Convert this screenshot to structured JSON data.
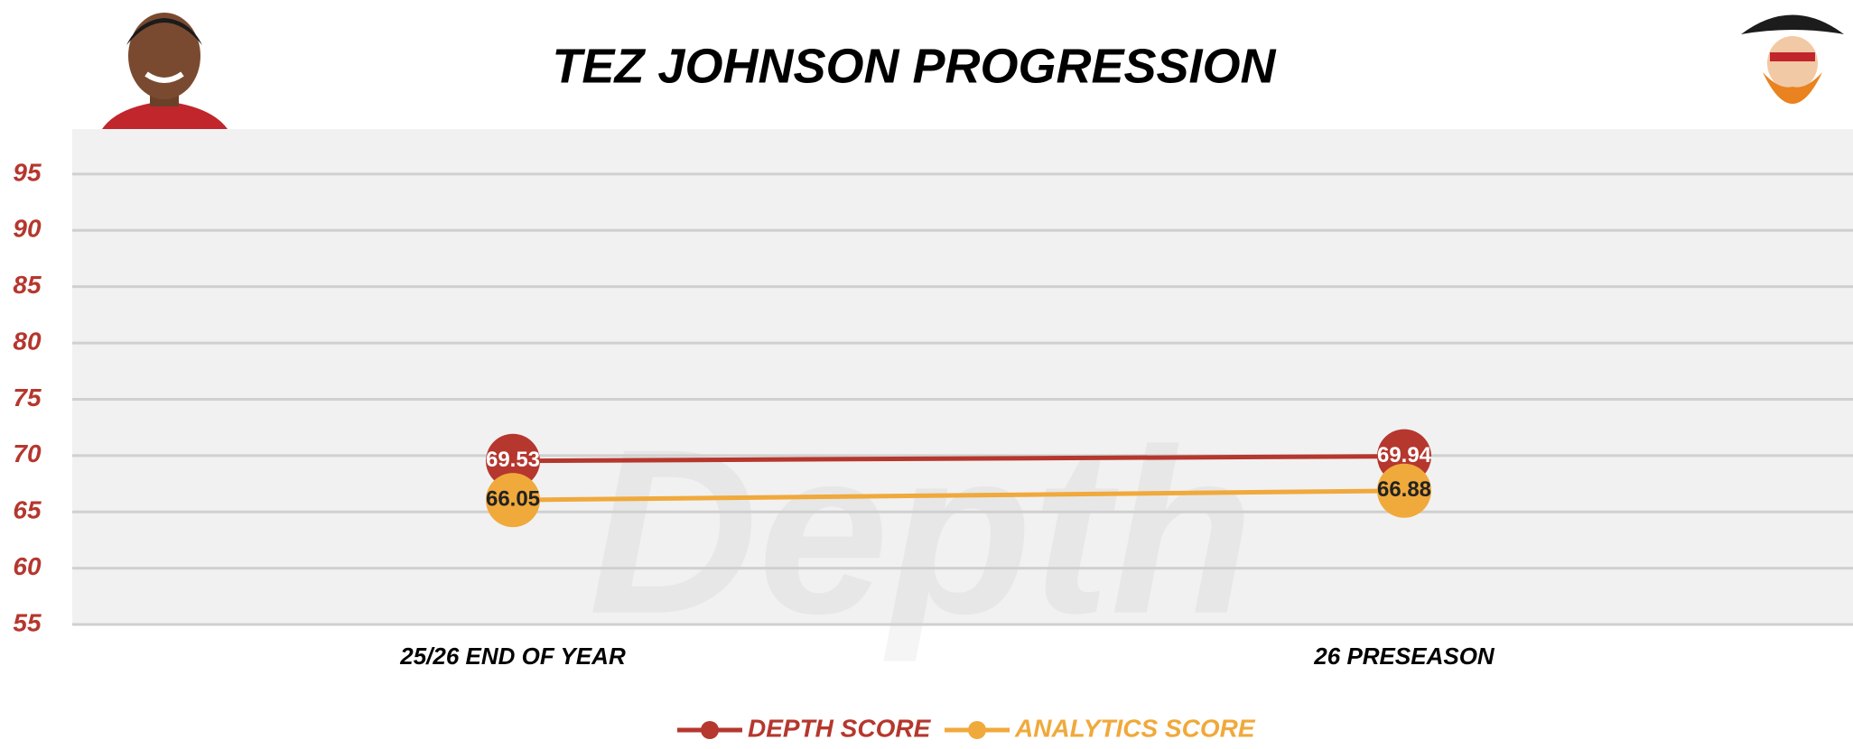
{
  "chart_data": {
    "type": "line",
    "title": "TEZ JOHNSON PROGRESSION",
    "watermark": "Depth",
    "categories": [
      "25/26 END OF YEAR",
      "26 PRESEASON"
    ],
    "series": [
      {
        "name": "DEPTH SCORE",
        "color": "#b5372e",
        "values": [
          69.53,
          69.94
        ]
      },
      {
        "name": "ANALYTICS SCORE",
        "color": "#f0a93b",
        "values": [
          66.05,
          66.88
        ]
      }
    ],
    "ylim": [
      55,
      99
    ],
    "yticks": [
      55,
      60,
      65,
      70,
      75,
      80,
      85,
      90,
      95
    ],
    "grid": true,
    "legend": "bottom"
  }
}
